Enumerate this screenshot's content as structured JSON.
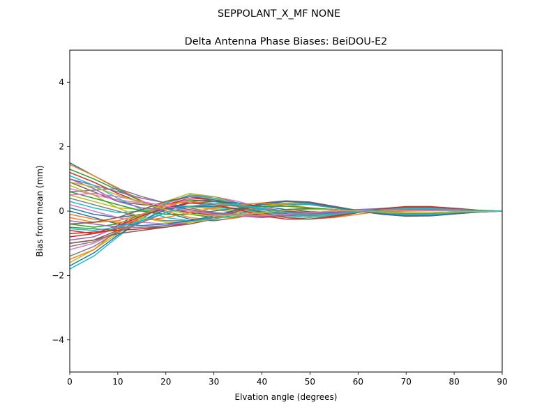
{
  "figure": {
    "suptitle": "SEPPOLANT_X_MF  NONE"
  },
  "chart_data": {
    "type": "line",
    "title": "Delta Antenna Phase Biases: BeiDOU-E2",
    "xlabel": "Elvation angle (degrees)",
    "ylabel": "Bias from mean (mm)",
    "xlim": [
      0,
      90
    ],
    "ylim": [
      -5,
      5
    ],
    "xticks": [
      0,
      10,
      20,
      30,
      40,
      50,
      60,
      70,
      80,
      90
    ],
    "yticks": [
      -4,
      -2,
      0,
      2,
      4
    ],
    "ytick_labels": [
      "−4",
      "−2",
      "0",
      "2",
      "4"
    ],
    "grid": false,
    "x": [
      0,
      5,
      10,
      15,
      20,
      25,
      30,
      35,
      40,
      45,
      50,
      55,
      60,
      65,
      70,
      75,
      80,
      85,
      90
    ],
    "series_colors": [
      "#1f77b4",
      "#ff7f0e",
      "#2ca02c",
      "#d62728",
      "#9467bd",
      "#8c564b",
      "#e377c2",
      "#7f7f7f",
      "#bcbd22",
      "#17becf"
    ],
    "series": [
      {
        "values": [
          1.5,
          1.1,
          0.7,
          0.3,
          -0.05,
          -0.25,
          -0.3,
          -0.2,
          -0.05,
          0.05,
          0.08,
          0.05,
          0.0,
          -0.08,
          -0.12,
          -0.1,
          -0.06,
          -0.02,
          0.0
        ]
      },
      {
        "values": [
          1.45,
          1.1,
          0.72,
          0.32,
          0.0,
          -0.2,
          -0.28,
          -0.2,
          -0.05,
          0.05,
          0.08,
          0.05,
          0.0,
          -0.07,
          -0.1,
          -0.1,
          -0.05,
          -0.02,
          0.0
        ]
      },
      {
        "values": [
          1.3,
          1.0,
          0.65,
          0.3,
          0.05,
          -0.1,
          -0.2,
          -0.18,
          -0.05,
          0.05,
          0.08,
          0.05,
          0.0,
          -0.06,
          -0.1,
          -0.08,
          -0.05,
          -0.02,
          0.0
        ]
      },
      {
        "values": [
          1.2,
          0.9,
          0.55,
          0.25,
          0.08,
          -0.05,
          -0.12,
          -0.12,
          -0.05,
          0.03,
          0.06,
          0.04,
          0.0,
          -0.05,
          -0.08,
          -0.07,
          -0.04,
          -0.01,
          0.0
        ]
      },
      {
        "values": [
          1.0,
          0.8,
          0.6,
          0.4,
          0.25,
          0.1,
          -0.05,
          -0.15,
          -0.2,
          -0.15,
          -0.08,
          0.0,
          0.05,
          0.08,
          0.07,
          0.05,
          0.02,
          0.0,
          0.0
        ]
      },
      {
        "values": [
          0.9,
          0.6,
          0.3,
          0.2,
          0.15,
          0.05,
          -0.08,
          -0.15,
          -0.18,
          -0.15,
          -0.1,
          -0.03,
          0.02,
          0.05,
          0.06,
          0.05,
          0.02,
          0.0,
          0.0
        ]
      },
      {
        "values": [
          0.7,
          0.5,
          0.35,
          0.25,
          0.2,
          0.15,
          0.05,
          -0.05,
          -0.12,
          -0.15,
          -0.12,
          -0.05,
          0.02,
          0.06,
          0.08,
          0.06,
          0.03,
          0.01,
          0.0
        ]
      },
      {
        "values": [
          0.6,
          0.65,
          0.7,
          0.45,
          0.25,
          0.1,
          -0.05,
          -0.1,
          -0.12,
          -0.1,
          -0.05,
          0.0,
          0.03,
          0.05,
          0.05,
          0.04,
          0.02,
          0.0,
          0.0
        ]
      },
      {
        "values": [
          0.5,
          0.3,
          0.1,
          0.05,
          0.1,
          0.12,
          0.08,
          0.0,
          -0.08,
          -0.12,
          -0.1,
          -0.05,
          0.0,
          0.04,
          0.06,
          0.05,
          0.02,
          0.0,
          0.0
        ]
      },
      {
        "values": [
          0.3,
          0.1,
          -0.05,
          0.0,
          0.1,
          0.15,
          0.12,
          0.05,
          -0.05,
          -0.1,
          -0.1,
          -0.05,
          0.0,
          0.04,
          0.05,
          0.04,
          0.02,
          0.0,
          0.0
        ]
      },
      {
        "values": [
          0.1,
          -0.1,
          -0.2,
          -0.1,
          0.05,
          0.15,
          0.15,
          0.08,
          -0.02,
          -0.08,
          -0.08,
          -0.04,
          0.0,
          0.03,
          0.05,
          0.04,
          0.02,
          0.0,
          0.0
        ]
      },
      {
        "values": [
          -0.2,
          -0.35,
          -0.3,
          -0.1,
          0.1,
          0.25,
          0.25,
          0.15,
          0.05,
          -0.02,
          -0.05,
          -0.03,
          0.0,
          0.02,
          0.03,
          0.03,
          0.01,
          0.0,
          0.0
        ]
      },
      {
        "values": [
          -0.4,
          -0.5,
          -0.4,
          -0.1,
          0.2,
          0.35,
          0.3,
          0.18,
          0.05,
          -0.05,
          -0.08,
          -0.05,
          0.0,
          0.03,
          0.04,
          0.03,
          0.01,
          0.0,
          0.0
        ]
      },
      {
        "values": [
          -0.6,
          -0.7,
          -0.55,
          -0.2,
          0.2,
          0.4,
          0.35,
          0.2,
          0.05,
          -0.05,
          -0.1,
          -0.06,
          0.0,
          0.04,
          0.05,
          0.04,
          0.02,
          0.0,
          0.0
        ]
      },
      {
        "values": [
          -0.9,
          -0.8,
          -0.5,
          -0.15,
          0.25,
          0.45,
          0.4,
          0.25,
          0.1,
          -0.02,
          -0.08,
          -0.06,
          0.0,
          0.04,
          0.05,
          0.04,
          0.02,
          0.0,
          0.0
        ]
      },
      {
        "values": [
          -1.0,
          -0.9,
          -0.6,
          -0.3,
          0.05,
          0.3,
          0.35,
          0.25,
          0.1,
          0.0,
          -0.05,
          -0.04,
          0.0,
          0.03,
          0.05,
          0.04,
          0.02,
          0.0,
          0.0
        ]
      },
      {
        "values": [
          -1.2,
          -1.0,
          -0.65,
          -0.3,
          0.1,
          0.4,
          0.45,
          0.3,
          0.1,
          -0.05,
          -0.1,
          -0.06,
          0.0,
          0.05,
          0.07,
          0.06,
          0.03,
          0.01,
          0.0
        ]
      },
      {
        "values": [
          -1.4,
          -1.1,
          -0.65,
          -0.2,
          0.25,
          0.5,
          0.45,
          0.25,
          0.05,
          -0.1,
          -0.15,
          -0.1,
          0.0,
          0.06,
          0.08,
          0.06,
          0.03,
          0.01,
          0.0
        ]
      },
      {
        "values": [
          -1.6,
          -1.2,
          -0.7,
          -0.2,
          0.3,
          0.55,
          0.45,
          0.2,
          0.0,
          -0.15,
          -0.18,
          -0.12,
          -0.02,
          0.06,
          0.1,
          0.08,
          0.04,
          0.01,
          0.0
        ]
      },
      {
        "values": [
          -1.8,
          -1.4,
          -0.8,
          -0.25,
          0.25,
          0.5,
          0.4,
          0.2,
          0.0,
          -0.15,
          -0.2,
          -0.12,
          -0.02,
          0.07,
          0.12,
          0.1,
          0.05,
          0.02,
          0.0
        ]
      },
      {
        "values": [
          -1.7,
          -1.3,
          -0.75,
          -0.3,
          0.05,
          0.25,
          0.3,
          0.25,
          0.15,
          0.05,
          -0.02,
          -0.04,
          -0.02,
          0.02,
          0.05,
          0.05,
          0.03,
          0.01,
          0.0
        ]
      },
      {
        "values": [
          -1.5,
          -1.2,
          -0.6,
          -0.1,
          0.2,
          0.3,
          0.2,
          0.05,
          -0.1,
          -0.2,
          -0.25,
          -0.2,
          -0.1,
          0.0,
          0.05,
          0.06,
          0.04,
          0.01,
          0.0
        ]
      },
      {
        "values": [
          -0.5,
          -0.55,
          -0.6,
          -0.55,
          -0.45,
          -0.3,
          -0.15,
          0.05,
          0.2,
          0.25,
          0.2,
          0.1,
          0.0,
          -0.08,
          -0.12,
          -0.12,
          -0.07,
          -0.02,
          0.0
        ]
      },
      {
        "values": [
          -0.7,
          -0.65,
          -0.6,
          -0.55,
          -0.5,
          -0.35,
          -0.2,
          0.05,
          0.25,
          0.3,
          0.25,
          0.12,
          0.0,
          -0.1,
          -0.15,
          -0.15,
          -0.09,
          -0.03,
          0.0
        ]
      },
      {
        "values": [
          -0.3,
          -0.4,
          -0.5,
          -0.5,
          -0.45,
          -0.35,
          -0.2,
          0.0,
          0.2,
          0.3,
          0.28,
          0.15,
          0.02,
          -0.08,
          -0.14,
          -0.14,
          -0.08,
          -0.03,
          0.0
        ]
      },
      {
        "values": [
          -1.0,
          -0.9,
          -0.7,
          -0.6,
          -0.5,
          -0.4,
          -0.25,
          0.0,
          0.25,
          0.32,
          0.28,
          0.15,
          0.02,
          -0.1,
          -0.16,
          -0.15,
          -0.09,
          -0.03,
          0.0
        ]
      },
      {
        "values": [
          0.2,
          0.0,
          -0.2,
          -0.35,
          -0.4,
          -0.35,
          -0.25,
          -0.05,
          0.15,
          0.25,
          0.22,
          0.12,
          0.02,
          -0.06,
          -0.1,
          -0.1,
          -0.06,
          -0.02,
          0.0
        ]
      },
      {
        "values": [
          0.4,
          0.2,
          0.0,
          -0.2,
          -0.3,
          -0.3,
          -0.2,
          -0.05,
          0.1,
          0.2,
          0.2,
          0.1,
          0.02,
          -0.05,
          -0.08,
          -0.08,
          -0.05,
          -0.02,
          0.0
        ]
      },
      {
        "values": [
          0.8,
          0.5,
          0.1,
          -0.2,
          -0.35,
          -0.35,
          -0.25,
          -0.05,
          0.15,
          0.25,
          0.22,
          0.12,
          0.02,
          -0.06,
          -0.1,
          -0.1,
          -0.06,
          -0.02,
          0.0
        ]
      },
      {
        "values": [
          1.1,
          0.8,
          0.4,
          0.05,
          -0.2,
          -0.3,
          -0.25,
          -0.1,
          0.1,
          0.22,
          0.22,
          0.12,
          0.02,
          -0.06,
          -0.1,
          -0.1,
          -0.06,
          -0.02,
          0.0
        ]
      },
      {
        "values": [
          0.0,
          -0.2,
          -0.4,
          -0.45,
          -0.4,
          -0.3,
          -0.15,
          0.05,
          0.22,
          0.3,
          0.25,
          0.12,
          0.02,
          -0.08,
          -0.14,
          -0.14,
          -0.08,
          -0.03,
          0.0
        ]
      },
      {
        "values": [
          -0.1,
          -0.25,
          -0.35,
          -0.3,
          -0.2,
          -0.05,
          0.1,
          0.2,
          0.25,
          0.2,
          0.1,
          0.02,
          -0.02,
          -0.02,
          0.0,
          0.01,
          0.01,
          0.0,
          0.0
        ]
      },
      {
        "values": [
          0.6,
          0.4,
          0.2,
          0.0,
          -0.1,
          -0.1,
          0.0,
          0.1,
          0.15,
          0.15,
          0.1,
          0.05,
          0.0,
          -0.03,
          -0.05,
          -0.05,
          -0.03,
          -0.01,
          0.0
        ]
      },
      {
        "values": [
          -0.8,
          -0.7,
          -0.45,
          -0.15,
          0.1,
          0.25,
          0.2,
          0.05,
          -0.15,
          -0.25,
          -0.25,
          -0.15,
          -0.03,
          0.08,
          0.14,
          0.14,
          0.09,
          0.03,
          0.0
        ]
      },
      {
        "values": [
          1.0,
          0.7,
          0.3,
          0.1,
          0.05,
          0.0,
          -0.05,
          -0.1,
          -0.15,
          -0.15,
          -0.1,
          -0.05,
          0.0,
          0.04,
          0.06,
          0.06,
          0.04,
          0.01,
          0.0
        ]
      },
      {
        "values": [
          -0.4,
          -0.35,
          -0.2,
          0.05,
          0.3,
          0.45,
          0.35,
          0.15,
          -0.05,
          -0.2,
          -0.25,
          -0.18,
          -0.05,
          0.06,
          0.12,
          0.12,
          0.07,
          0.02,
          0.0
        ]
      },
      {
        "values": [
          0.5,
          0.55,
          0.45,
          0.3,
          0.15,
          0.0,
          -0.1,
          -0.15,
          -0.15,
          -0.1,
          -0.05,
          0.0,
          0.02,
          0.03,
          0.03,
          0.02,
          0.01,
          0.0,
          0.0
        ]
      },
      {
        "values": [
          -1.1,
          -0.95,
          -0.65,
          -0.35,
          -0.05,
          0.15,
          0.2,
          0.15,
          0.05,
          -0.05,
          -0.1,
          -0.08,
          -0.02,
          0.04,
          0.07,
          0.07,
          0.04,
          0.01,
          0.0
        ]
      },
      {
        "values": [
          0.9,
          0.75,
          0.5,
          0.25,
          0.05,
          -0.1,
          -0.15,
          -0.12,
          -0.05,
          0.02,
          0.05,
          0.04,
          0.0,
          -0.03,
          -0.05,
          -0.05,
          -0.03,
          -0.01,
          0.0
        ]
      },
      {
        "values": [
          -0.55,
          -0.6,
          -0.5,
          -0.3,
          -0.05,
          0.15,
          0.25,
          0.2,
          0.08,
          -0.05,
          -0.12,
          -0.1,
          -0.03,
          0.04,
          0.08,
          0.08,
          0.05,
          0.02,
          0.0
        ]
      }
    ]
  }
}
